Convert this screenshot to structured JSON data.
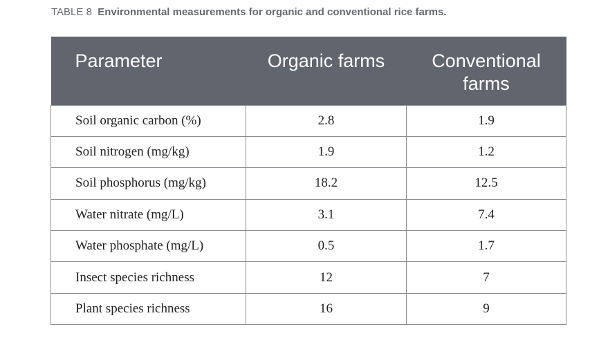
{
  "caption": {
    "label": "TABLE 8",
    "title": "Environmental measurements for organic and conventional rice farms."
  },
  "table": {
    "headers": [
      "Parameter",
      "Organic farms",
      "Conventional farms"
    ],
    "rows": [
      [
        "Soil organic carbon (%)",
        "2.8",
        "1.9"
      ],
      [
        "Soil nitrogen (mg/kg)",
        "1.9",
        "1.2"
      ],
      [
        "Soil phosphorus (mg/kg)",
        "18.2",
        "12.5"
      ],
      [
        "Water nitrate (mg/L)",
        "3.1",
        "7.4"
      ],
      [
        "Water phosphate (mg/L)",
        "0.5",
        "1.7"
      ],
      [
        "Insect species richness",
        "12",
        "7"
      ],
      [
        "Plant species richness",
        "16",
        "9"
      ]
    ]
  },
  "colors": {
    "header_background": "#61656d",
    "header_text": "#ffffff",
    "caption_text": "#666a70",
    "border": "#8a8d92"
  }
}
